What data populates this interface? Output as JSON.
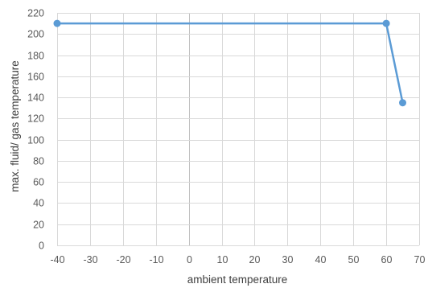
{
  "chart_data": {
    "type": "line",
    "title": "",
    "xlabel": "ambient temperature",
    "ylabel": "max. fluid/ gas temperature",
    "xlim": [
      -40,
      70
    ],
    "ylim": [
      0,
      220
    ],
    "x_ticks": [
      -40,
      -30,
      -20,
      -10,
      0,
      10,
      20,
      30,
      40,
      50,
      60,
      70
    ],
    "y_ticks": [
      0,
      20,
      40,
      60,
      80,
      100,
      120,
      140,
      160,
      180,
      200,
      220
    ],
    "grid": true,
    "legend": "none",
    "series": [
      {
        "color": "#5b9bd5",
        "x": [
          -40,
          60,
          65
        ],
        "y": [
          210,
          210,
          135
        ]
      }
    ]
  }
}
